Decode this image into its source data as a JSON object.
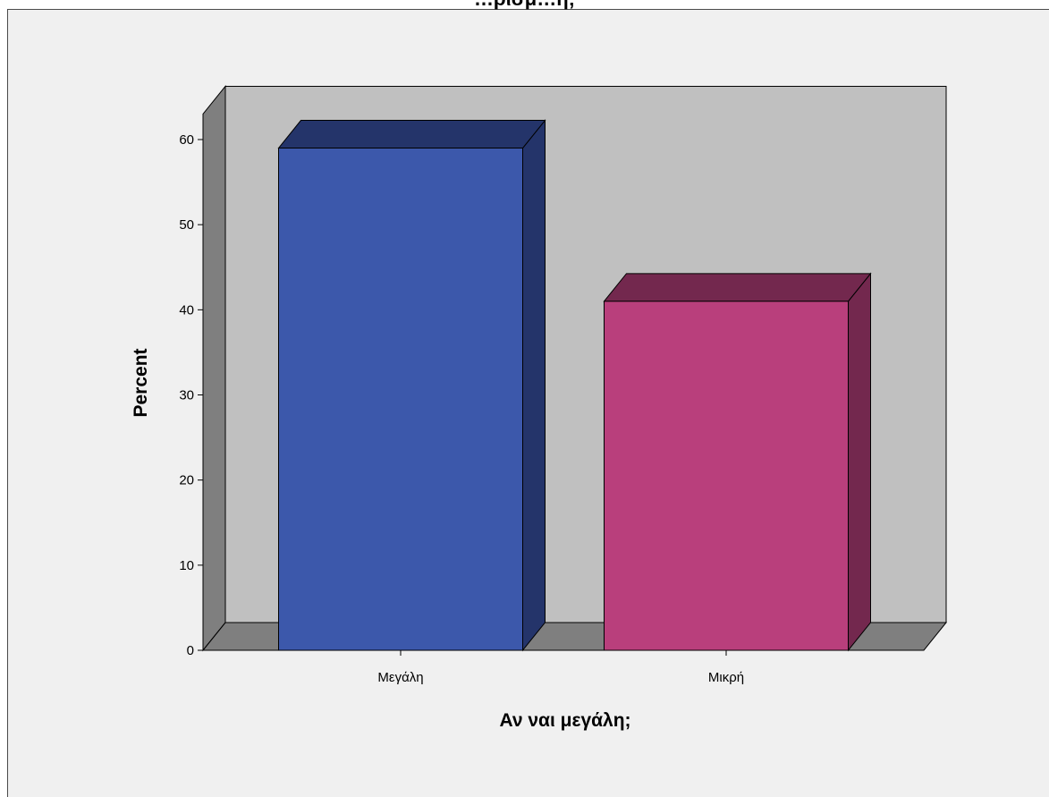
{
  "chart_data": {
    "type": "bar",
    "title": "…ρισμ…η;",
    "xlabel": "Αν ναι μεγάλη;",
    "ylabel": "Percent",
    "categories": [
      "Μεγάλη",
      "Μικρή"
    ],
    "values": [
      59,
      41
    ],
    "ylim": [
      0,
      60
    ],
    "yticks": [
      0,
      10,
      20,
      30,
      40,
      50,
      60
    ],
    "grid": false,
    "style": "3d",
    "colors": {
      "bars": [
        "#3c58ab",
        "#b93f7c"
      ],
      "bar_tops": [
        "#24346a",
        "#73284e"
      ],
      "back_wall": "#c0c0c0",
      "side_wall": "#7f7f7f",
      "floor": "#7f7f7f",
      "background": "#f0f0f0"
    }
  }
}
